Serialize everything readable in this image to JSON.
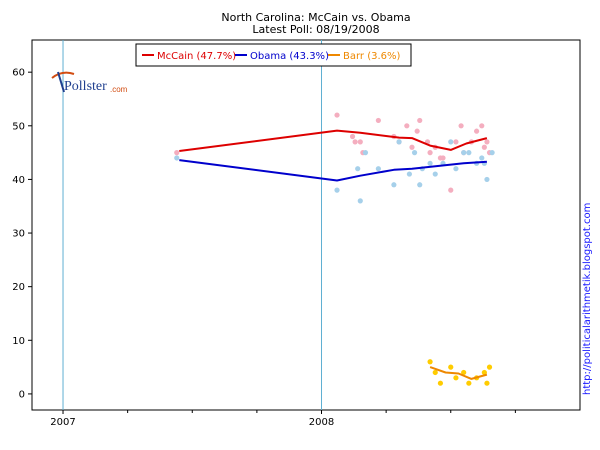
{
  "chart_data": {
    "type": "line",
    "title": "North Carolina: McCain vs. Obama",
    "subtitle": "Latest Poll: 08/19/2008",
    "ylim": [
      -3,
      66
    ],
    "yticks": [
      0,
      10,
      20,
      30,
      40,
      50,
      60
    ],
    "xlim": [
      2006.88,
      2009.0
    ],
    "xticks": [
      {
        "value": 2007.0,
        "label": "2007"
      },
      {
        "value": 2008.0,
        "label": "2008"
      }
    ],
    "minor_xticks": [
      2007.25,
      2007.5,
      2007.75,
      2008.25,
      2008.5,
      2008.75
    ],
    "vlines": [
      2007.0,
      2008.0
    ],
    "legend": [
      {
        "label": "McCain (47.7%)",
        "color": "#dd0000"
      },
      {
        "label": "Obama (43.3%)",
        "color": "#0000cc"
      },
      {
        "label": "Barr (3.6%)",
        "color": "#ee8800"
      }
    ],
    "series": [
      {
        "name": "McCain",
        "color": "#dd0000",
        "point_color": "#f4aebf",
        "trend": [
          [
            2007.45,
            45.3
          ],
          [
            2008.06,
            49.1
          ],
          [
            2008.15,
            48.7
          ],
          [
            2008.3,
            47.8
          ],
          [
            2008.35,
            47.7
          ],
          [
            2008.42,
            46.3
          ],
          [
            2008.5,
            45.5
          ],
          [
            2008.56,
            46.7
          ],
          [
            2008.64,
            47.7
          ]
        ],
        "points": [
          [
            2007.44,
            45
          ],
          [
            2008.06,
            52
          ],
          [
            2008.12,
            48
          ],
          [
            2008.13,
            47
          ],
          [
            2008.15,
            47
          ],
          [
            2008.16,
            45
          ],
          [
            2008.22,
            51
          ],
          [
            2008.28,
            48
          ],
          [
            2008.3,
            47
          ],
          [
            2008.33,
            50
          ],
          [
            2008.35,
            46
          ],
          [
            2008.37,
            49
          ],
          [
            2008.38,
            51
          ],
          [
            2008.41,
            47
          ],
          [
            2008.42,
            45
          ],
          [
            2008.44,
            46
          ],
          [
            2008.46,
            44
          ],
          [
            2008.47,
            44
          ],
          [
            2008.5,
            38
          ],
          [
            2008.52,
            47
          ],
          [
            2008.54,
            50
          ],
          [
            2008.55,
            45
          ],
          [
            2008.58,
            47
          ],
          [
            2008.6,
            49
          ],
          [
            2008.62,
            50
          ],
          [
            2008.63,
            46
          ],
          [
            2008.64,
            47
          ],
          [
            2008.65,
            45
          ]
        ]
      },
      {
        "name": "Obama",
        "color": "#0000cc",
        "point_color": "#a6d0ea",
        "trend": [
          [
            2007.45,
            43.6
          ],
          [
            2008.06,
            39.8
          ],
          [
            2008.15,
            40.7
          ],
          [
            2008.28,
            41.8
          ],
          [
            2008.35,
            42.0
          ],
          [
            2008.45,
            42.5
          ],
          [
            2008.55,
            43.0
          ],
          [
            2008.64,
            43.3
          ]
        ],
        "points": [
          [
            2007.44,
            44
          ],
          [
            2008.06,
            38
          ],
          [
            2008.14,
            42
          ],
          [
            2008.15,
            36
          ],
          [
            2008.17,
            45
          ],
          [
            2008.22,
            42
          ],
          [
            2008.28,
            39
          ],
          [
            2008.3,
            47
          ],
          [
            2008.34,
            41
          ],
          [
            2008.36,
            45
          ],
          [
            2008.38,
            39
          ],
          [
            2008.39,
            42
          ],
          [
            2008.42,
            43
          ],
          [
            2008.44,
            41
          ],
          [
            2008.47,
            43
          ],
          [
            2008.5,
            47
          ],
          [
            2008.52,
            42
          ],
          [
            2008.55,
            45
          ],
          [
            2008.57,
            45
          ],
          [
            2008.6,
            43
          ],
          [
            2008.62,
            44
          ],
          [
            2008.63,
            43
          ],
          [
            2008.64,
            40
          ],
          [
            2008.66,
            45
          ]
        ]
      },
      {
        "name": "Barr",
        "color": "#ee8800",
        "point_color": "#ffcc00",
        "trend": [
          [
            2008.42,
            5.0
          ],
          [
            2008.48,
            4.0
          ],
          [
            2008.53,
            3.8
          ],
          [
            2008.58,
            2.8
          ],
          [
            2008.64,
            3.6
          ]
        ],
        "points": [
          [
            2008.42,
            6
          ],
          [
            2008.44,
            4
          ],
          [
            2008.46,
            2
          ],
          [
            2008.5,
            5
          ],
          [
            2008.52,
            3
          ],
          [
            2008.55,
            4
          ],
          [
            2008.57,
            2
          ],
          [
            2008.6,
            3
          ],
          [
            2008.63,
            4
          ],
          [
            2008.64,
            2
          ],
          [
            2008.65,
            5
          ]
        ]
      }
    ]
  },
  "branding": {
    "logo_text": "Pollster",
    "logo_suffix": ".com"
  },
  "side_note": "http://politicalarithmetik.blogspot.com"
}
